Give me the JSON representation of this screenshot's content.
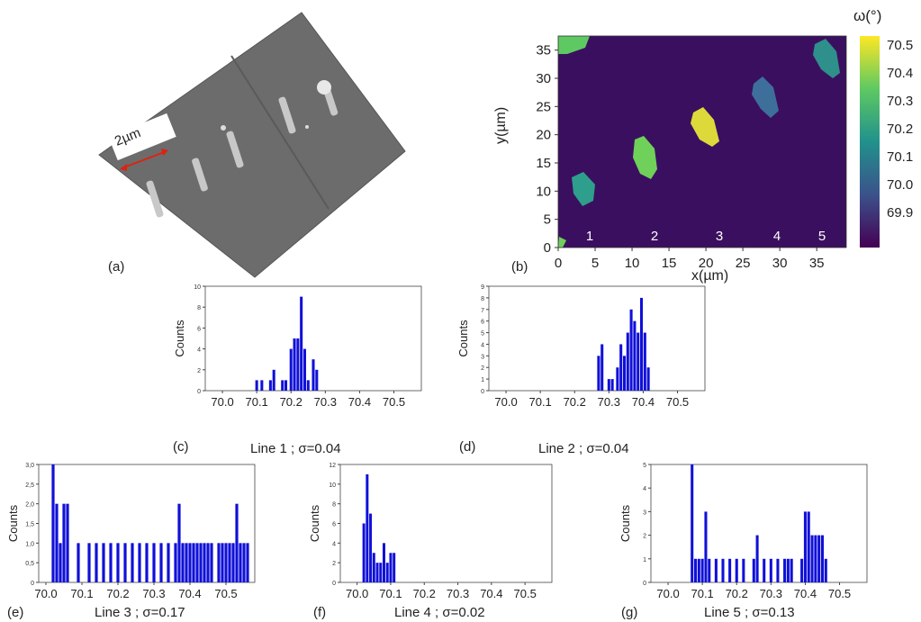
{
  "panels": {
    "a": {
      "label": "(a)",
      "scale_label": "2µm"
    },
    "b": {
      "label": "(b)",
      "xlabel": "x(µm)",
      "ylabel": "y(µm)",
      "colorbar_title": "ω(°)",
      "x_ticks": [
        "0",
        "5",
        "10",
        "15",
        "20",
        "25",
        "30",
        "35"
      ],
      "y_ticks": [
        "0",
        "5",
        "10",
        "15",
        "20",
        "25",
        "30",
        "35"
      ],
      "colorbar_ticks": [
        "70.5",
        "70.4",
        "70.3",
        "70.2",
        "70.1",
        "70.0",
        "69.9"
      ],
      "line_numbers": [
        "1",
        "2",
        "3",
        "4",
        "5"
      ]
    },
    "c": {
      "label": "(c)",
      "caption": "Line 1 ; σ=0.04"
    },
    "d": {
      "label": "(d)",
      "caption": "Line 2 ; σ=0.04"
    },
    "e": {
      "label": "(e)",
      "caption": "Line 3 ; σ=0.17"
    },
    "f": {
      "label": "(f)",
      "caption": "Line 4 ; σ=0.02"
    },
    "g": {
      "label": "(g)",
      "caption": "Line 5 ; σ=0.13"
    }
  },
  "colors": {
    "bar": "#1010d8",
    "map_bg": "#3b0f5f"
  },
  "chart_data": [
    {
      "id": "c",
      "type": "bar",
      "ylabel": "Counts",
      "xlim": [
        69.95,
        70.58
      ],
      "ylim": [
        0,
        10
      ],
      "yticks": [
        0,
        2,
        4,
        6,
        8,
        10
      ],
      "xticks": [
        "70.0",
        "70.1",
        "70.2",
        "70.3",
        "70.4",
        "70.5"
      ],
      "binw": 0.008,
      "x": [
        70.1,
        70.115,
        70.14,
        70.15,
        70.175,
        70.185,
        70.2,
        70.21,
        70.22,
        70.23,
        70.24,
        70.25,
        70.265,
        70.275
      ],
      "values": [
        1,
        1,
        1,
        2,
        1,
        1,
        4,
        5,
        5,
        9,
        4,
        1,
        3,
        2
      ]
    },
    {
      "id": "d",
      "type": "bar",
      "ylabel": "Counts",
      "xlim": [
        69.95,
        70.58
      ],
      "ylim": [
        0,
        9
      ],
      "yticks": [
        0,
        1,
        2,
        3,
        4,
        5,
        6,
        7,
        8,
        9
      ],
      "xticks": [
        "70.0",
        "70.1",
        "70.2",
        "70.3",
        "70.4",
        "70.5"
      ],
      "binw": 0.008,
      "x": [
        70.27,
        70.28,
        70.3,
        70.31,
        70.325,
        70.335,
        70.345,
        70.355,
        70.365,
        70.375,
        70.385,
        70.395,
        70.405,
        70.415
      ],
      "values": [
        3,
        4,
        1,
        1,
        2,
        4,
        3,
        5,
        7,
        6,
        5,
        8,
        5,
        2
      ]
    },
    {
      "id": "e",
      "type": "bar",
      "ylabel": "Counts",
      "xlim": [
        69.98,
        70.58
      ],
      "ylim": [
        0,
        3
      ],
      "yticks": [
        "0",
        "0,5",
        "1,0",
        "1,5",
        "2,0",
        "2,5",
        "3,0"
      ],
      "ytickvals": [
        0,
        0.5,
        1,
        1.5,
        2,
        2.5,
        3
      ],
      "xticks": [
        "70.0",
        "70.1",
        "70.2",
        "70.3",
        "70.4",
        "70.5"
      ],
      "binw": 0.008,
      "x": [
        70.02,
        70.03,
        70.04,
        70.05,
        70.06,
        70.09,
        70.12,
        70.14,
        70.16,
        70.18,
        70.2,
        70.22,
        70.24,
        70.26,
        70.28,
        70.3,
        70.32,
        70.34,
        70.36,
        70.37,
        70.38,
        70.39,
        70.4,
        70.41,
        70.42,
        70.43,
        70.44,
        70.45,
        70.46,
        70.48,
        70.49,
        70.5,
        70.51,
        70.52,
        70.53,
        70.54,
        70.55,
        70.56
      ],
      "values": [
        3,
        2,
        1,
        2,
        2,
        1,
        1,
        1,
        1,
        1,
        1,
        1,
        1,
        1,
        1,
        1,
        1,
        1,
        1,
        2,
        1,
        1,
        1,
        1,
        1,
        1,
        1,
        1,
        1,
        1,
        1,
        1,
        1,
        1,
        2,
        1,
        1,
        1
      ]
    },
    {
      "id": "f",
      "type": "bar",
      "ylabel": "Counts",
      "xlim": [
        69.95,
        70.58
      ],
      "ylim": [
        0,
        12
      ],
      "yticks": [
        0,
        2,
        4,
        6,
        8,
        10,
        12
      ],
      "xticks": [
        "70.0",
        "70.1",
        "70.2",
        "70.3",
        "70.4",
        "70.5"
      ],
      "binw": 0.008,
      "x": [
        70.02,
        70.03,
        70.04,
        70.05,
        70.06,
        70.07,
        70.08,
        70.09,
        70.1,
        70.11
      ],
      "values": [
        6,
        11,
        7,
        3,
        2,
        2,
        4,
        2,
        3,
        3
      ]
    },
    {
      "id": "g",
      "type": "bar",
      "ylabel": "Counts",
      "xlim": [
        69.95,
        70.58
      ],
      "ylim": [
        0,
        5
      ],
      "yticks": [
        0,
        1,
        2,
        3,
        4,
        5
      ],
      "xticks": [
        "70.0",
        "70.1",
        "70.2",
        "70.3",
        "70.4",
        "70.5"
      ],
      "binw": 0.008,
      "x": [
        70.07,
        70.08,
        70.09,
        70.1,
        70.11,
        70.12,
        70.14,
        70.16,
        70.18,
        70.2,
        70.22,
        70.25,
        70.26,
        70.28,
        70.3,
        70.32,
        70.34,
        70.35,
        70.36,
        70.39,
        70.4,
        70.41,
        70.42,
        70.43,
        70.44,
        70.45,
        70.46
      ],
      "values": [
        5,
        1,
        1,
        1,
        3,
        1,
        1,
        1,
        1,
        1,
        1,
        1,
        2,
        1,
        1,
        1,
        1,
        1,
        1,
        1,
        3,
        3,
        2,
        2,
        2,
        2,
        1
      ]
    }
  ]
}
